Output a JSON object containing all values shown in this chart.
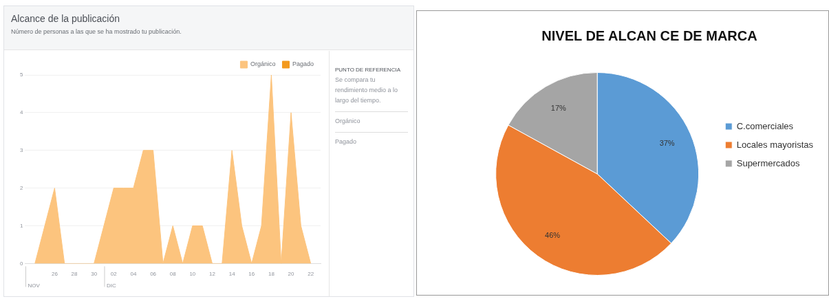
{
  "chart_data": [
    {
      "type": "area",
      "title": "Alcance de la publicación",
      "subtitle": "Número de personas a las que se ha mostrado tu publicación.",
      "x": [
        "--11-24",
        "--11-26",
        "--11-27",
        "--11-28",
        "--11-29",
        "--11-30",
        "--12-01",
        "--12-02",
        "--12-03",
        "--12-04",
        "--12-05",
        "--12-06",
        "--12-07",
        "--12-08",
        "--12-09",
        "--12-10",
        "--12-11",
        "--12-12",
        "--12-13",
        "--12-14",
        "--12-15",
        "--12-16",
        "--12-17",
        "--12-18",
        "--12-19",
        "--12-20",
        "--12-21",
        "--12-22"
      ],
      "series": [
        {
          "name": "Orgánico",
          "color": "#fcc47e",
          "values": [
            0,
            2,
            0,
            0,
            0,
            0,
            1,
            2,
            2,
            2,
            3,
            3,
            0,
            1,
            0,
            1,
            1,
            0,
            0,
            3,
            1,
            0,
            1,
            5,
            0,
            4,
            1,
            0
          ]
        },
        {
          "name": "Pagado",
          "color": "#f39a1e",
          "values": [
            null,
            null,
            null,
            null,
            null,
            null,
            null,
            null,
            null,
            null,
            null,
            null,
            null,
            null,
            null,
            null,
            null,
            null,
            null,
            null,
            null,
            null,
            null,
            null,
            null,
            null,
            null,
            null
          ]
        }
      ],
      "xlim": [
        "--11-23",
        "--12-23"
      ],
      "xticks": [
        {
          "value": "--11-26",
          "label": "26"
        },
        {
          "value": "--11-28",
          "label": "28"
        },
        {
          "value": "--11-30",
          "label": "30"
        },
        {
          "value": "--12-02",
          "label": "02"
        },
        {
          "value": "--12-04",
          "label": "04"
        },
        {
          "value": "--12-06",
          "label": "06"
        },
        {
          "value": "--12-08",
          "label": "08"
        },
        {
          "value": "--12-10",
          "label": "10"
        },
        {
          "value": "--12-12",
          "label": "12"
        },
        {
          "value": "--12-14",
          "label": "14"
        },
        {
          "value": "--12-16",
          "label": "16"
        },
        {
          "value": "--12-18",
          "label": "18"
        },
        {
          "value": "--12-20",
          "label": "20"
        },
        {
          "value": "--12-22",
          "label": "22"
        }
      ],
      "ylim": [
        0,
        5
      ],
      "yticks": [
        0,
        1,
        2,
        3,
        4,
        5
      ],
      "grid": "y",
      "legend": "top right",
      "marker": "none",
      "annotations": [
        "NOV",
        "DIC",
        "PUNTO DE REFERENCIA",
        "Se compara tu rendimiento medio a lo largo del tiempo.",
        "Orgánico",
        "Pagado"
      ]
    },
    {
      "type": "pie",
      "title": "NIVEL DE ALCAN CE DE MARCA",
      "categories": [
        "C.comerciales",
        "Locales mayoristas",
        "Supermercados"
      ],
      "values": [
        37,
        46,
        17
      ],
      "colors": [
        "#5b9bd5",
        "#ed7d31",
        "#a5a5a5"
      ],
      "value_labels": [
        "37%",
        "46%",
        "17%"
      ],
      "legend": "right"
    }
  ]
}
